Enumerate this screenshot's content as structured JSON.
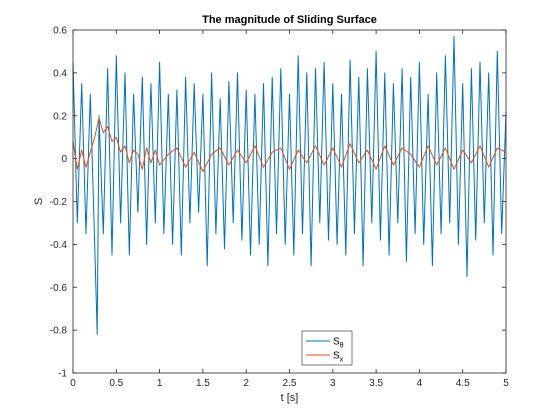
{
  "chart_data": {
    "type": "line",
    "title": "The magnitude of Sliding Surface",
    "xlabel": "t [s]",
    "ylabel": "S",
    "xlim": [
      0,
      5
    ],
    "ylim": [
      -1,
      0.6
    ],
    "xticks": [
      0,
      0.5,
      1,
      1.5,
      2,
      2.5,
      3,
      3.5,
      4,
      4.5,
      5
    ],
    "xtick_labels": [
      "0",
      "0.5",
      "1",
      "1.5",
      "2",
      "2.5",
      "3",
      "3.5",
      "4",
      "4.5",
      "5"
    ],
    "yticks": [
      -1,
      -0.8,
      -0.6,
      -0.4,
      -0.2,
      0,
      0.2,
      0.4,
      0.6
    ],
    "ytick_labels": [
      "-1",
      "-0.8",
      "-0.6",
      "-0.4",
      "-0.2",
      "0",
      "0.2",
      "0.4",
      "0.6"
    ],
    "grid": false,
    "legend_position": "bottom-center",
    "series": [
      {
        "name": "S",
        "subscript": "θ",
        "color": "#0072BD",
        "x": [
          0,
          0.05,
          0.1,
          0.15,
          0.2,
          0.25,
          0.28,
          0.3,
          0.35,
          0.4,
          0.45,
          0.5,
          0.55,
          0.6,
          0.65,
          0.7,
          0.75,
          0.8,
          0.85,
          0.9,
          0.95,
          1.0,
          1.05,
          1.1,
          1.15,
          1.2,
          1.25,
          1.3,
          1.35,
          1.4,
          1.45,
          1.5,
          1.55,
          1.6,
          1.65,
          1.7,
          1.75,
          1.8,
          1.85,
          1.9,
          1.95,
          2.0,
          2.05,
          2.1,
          2.15,
          2.2,
          2.25,
          2.3,
          2.35,
          2.4,
          2.45,
          2.5,
          2.55,
          2.6,
          2.65,
          2.7,
          2.75,
          2.8,
          2.85,
          2.9,
          2.95,
          3.0,
          3.05,
          3.1,
          3.15,
          3.2,
          3.25,
          3.3,
          3.35,
          3.4,
          3.45,
          3.5,
          3.55,
          3.6,
          3.65,
          3.7,
          3.75,
          3.8,
          3.85,
          3.9,
          3.95,
          4.0,
          4.05,
          4.1,
          4.15,
          4.2,
          4.25,
          4.3,
          4.35,
          4.4,
          4.45,
          4.5,
          4.55,
          4.6,
          4.65,
          4.7,
          4.75,
          4.8,
          4.85,
          4.9,
          4.95,
          5.0
        ],
        "y": [
          0.45,
          -0.3,
          0.35,
          -0.35,
          0.3,
          -0.4,
          -0.82,
          0.2,
          -0.35,
          0.42,
          -0.45,
          0.48,
          -0.3,
          0.4,
          -0.45,
          0.3,
          -0.25,
          0.38,
          -0.4,
          0.35,
          -0.3,
          0.45,
          -0.35,
          0.3,
          -0.4,
          0.32,
          -0.45,
          0.38,
          -0.3,
          0.35,
          -0.25,
          0.3,
          -0.5,
          0.4,
          -0.35,
          0.28,
          -0.42,
          0.36,
          -0.3,
          0.4,
          -0.38,
          0.32,
          -0.45,
          0.3,
          -0.4,
          0.35,
          -0.5,
          0.38,
          -0.35,
          0.42,
          -0.4,
          0.3,
          -0.45,
          0.48,
          -0.35,
          0.4,
          -0.5,
          0.42,
          -0.3,
          0.45,
          -0.38,
          0.35,
          -0.4,
          0.3,
          -0.45,
          0.46,
          -0.35,
          0.38,
          -0.5,
          0.42,
          -0.3,
          0.5,
          -0.38,
          0.4,
          -0.45,
          0.35,
          -0.3,
          0.42,
          -0.48,
          0.38,
          -0.35,
          0.45,
          -0.4,
          0.3,
          -0.5,
          0.4,
          -0.35,
          0.48,
          -0.3,
          0.57,
          -0.4,
          0.35,
          -0.55,
          0.42,
          -0.38,
          0.45,
          -0.3,
          0.4,
          -0.45,
          0.5,
          -0.35,
          0.22
        ]
      },
      {
        "name": "S",
        "subscript": "x",
        "color": "#D95319",
        "x": [
          0,
          0.05,
          0.1,
          0.15,
          0.2,
          0.25,
          0.3,
          0.35,
          0.4,
          0.45,
          0.5,
          0.55,
          0.6,
          0.65,
          0.7,
          0.75,
          0.8,
          0.85,
          0.9,
          0.95,
          1.0,
          1.1,
          1.2,
          1.3,
          1.4,
          1.5,
          1.6,
          1.7,
          1.8,
          1.9,
          2.0,
          2.1,
          2.2,
          2.3,
          2.4,
          2.5,
          2.6,
          2.7,
          2.8,
          2.9,
          3.0,
          3.1,
          3.2,
          3.3,
          3.4,
          3.5,
          3.6,
          3.7,
          3.8,
          3.9,
          4.0,
          4.1,
          4.2,
          4.3,
          4.4,
          4.5,
          4.6,
          4.7,
          4.8,
          4.9,
          5.0
        ],
        "y": [
          0.08,
          -0.05,
          0.04,
          -0.04,
          0.03,
          0.1,
          0.19,
          0.12,
          0.15,
          0.08,
          0.1,
          0.03,
          0.06,
          -0.02,
          0.04,
          0.02,
          -0.05,
          0.05,
          -0.02,
          0.04,
          -0.03,
          0.02,
          0.05,
          -0.04,
          0.03,
          -0.06,
          0.02,
          0.05,
          -0.03,
          0.04,
          -0.02,
          0.06,
          -0.04,
          0.03,
          0.05,
          -0.05,
          0.04,
          -0.02,
          0.06,
          -0.03,
          0.05,
          -0.04,
          0.07,
          -0.02,
          0.04,
          -0.05,
          0.06,
          -0.03,
          0.05,
          0.02,
          -0.04,
          0.06,
          -0.03,
          0.05,
          -0.05,
          0.04,
          -0.02,
          0.06,
          -0.04,
          0.05,
          0.03
        ]
      }
    ]
  }
}
